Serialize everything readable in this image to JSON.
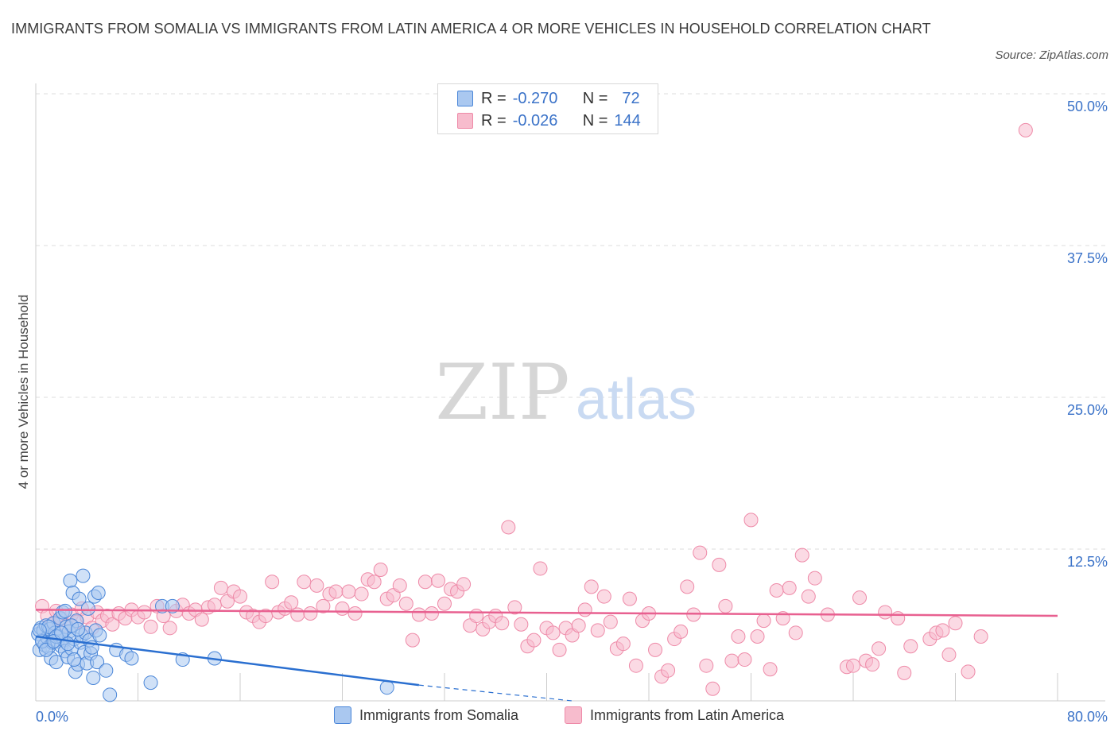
{
  "title": "IMMIGRANTS FROM SOMALIA VS IMMIGRANTS FROM LATIN AMERICA 4 OR MORE VEHICLES IN HOUSEHOLD CORRELATION CHART",
  "source": "Source: ZipAtlas.com",
  "watermark": {
    "zip": "ZIP",
    "atlas": "atlas"
  },
  "legend": {
    "r_label": "R =",
    "n_label": "N =",
    "somalia": {
      "r": "-0.270",
      "n": "72"
    },
    "latin": {
      "r": "-0.026",
      "n": "144"
    }
  },
  "colors": {
    "somalia_fill": "#aac8f0",
    "somalia_stroke": "#4a86d8",
    "somalia_line": "#2a6fd0",
    "latin_fill": "#f7bccd",
    "latin_stroke": "#ee8aa8",
    "latin_line": "#e86090",
    "tick_label": "#3a72c8",
    "grid": "#dddddd"
  },
  "chart_data": {
    "type": "scatter",
    "title": "IMMIGRANTS FROM SOMALIA VS IMMIGRANTS FROM LATIN AMERICA 4 OR MORE VEHICLES IN HOUSEHOLD CORRELATION CHART",
    "xlabel": "",
    "ylabel": "4 or more Vehicles in Household",
    "xlim": [
      0,
      80
    ],
    "ylim": [
      0,
      50
    ],
    "x_tick_labels": [
      "0.0%",
      "80.0%"
    ],
    "y_ticks": [
      12.5,
      25.0,
      37.5,
      50.0
    ],
    "y_tick_labels": [
      "12.5%",
      "25.0%",
      "37.5%",
      "50.0%"
    ],
    "grid": "horizontal dashed",
    "legend_position": "top-center",
    "series": [
      {
        "name": "Immigrants from Somalia",
        "r": -0.27,
        "n": 72,
        "trend": {
          "x0": 0,
          "y0": 5.3,
          "x1": 30,
          "y1": 1.3,
          "dashed_to_x": 42,
          "dashed_to_y": -0.3
        },
        "points": [
          [
            0.2,
            5.5
          ],
          [
            0.3,
            4.2
          ],
          [
            0.4,
            6.0
          ],
          [
            0.5,
            5.0
          ],
          [
            0.6,
            5.8
          ],
          [
            0.7,
            4.6
          ],
          [
            0.8,
            6.2
          ],
          [
            0.9,
            5.2
          ],
          [
            1.0,
            4.4
          ],
          [
            1.1,
            5.9
          ],
          [
            1.2,
            3.5
          ],
          [
            1.3,
            4.8
          ],
          [
            1.4,
            6.4
          ],
          [
            1.5,
            5.6
          ],
          [
            1.6,
            3.2
          ],
          [
            1.7,
            4.9
          ],
          [
            1.8,
            5.3
          ],
          [
            1.9,
            6.8
          ],
          [
            2.0,
            4.5
          ],
          [
            2.1,
            7.3
          ],
          [
            2.2,
            5.0
          ],
          [
            2.3,
            4.1
          ],
          [
            2.4,
            6.1
          ],
          [
            2.5,
            3.6
          ],
          [
            2.6,
            5.7
          ],
          [
            2.7,
            9.9
          ],
          [
            2.8,
            4.3
          ],
          [
            2.9,
            8.9
          ],
          [
            3.0,
            5.1
          ],
          [
            3.1,
            2.4
          ],
          [
            3.2,
            6.6
          ],
          [
            3.3,
            3.0
          ],
          [
            3.4,
            8.4
          ],
          [
            3.5,
            4.8
          ],
          [
            3.6,
            5.4
          ],
          [
            3.7,
            10.3
          ],
          [
            3.8,
            4.0
          ],
          [
            3.9,
            5.6
          ],
          [
            4.0,
            3.1
          ],
          [
            4.1,
            7.6
          ],
          [
            4.2,
            5.0
          ],
          [
            4.3,
            3.9
          ],
          [
            4.4,
            4.4
          ],
          [
            4.5,
            1.9
          ],
          [
            4.6,
            8.6
          ],
          [
            4.7,
            5.8
          ],
          [
            4.8,
            3.2
          ],
          [
            4.9,
            8.9
          ],
          [
            5.0,
            5.4
          ],
          [
            5.5,
            2.5
          ],
          [
            5.8,
            0.5
          ],
          [
            6.3,
            4.2
          ],
          [
            7.1,
            3.8
          ],
          [
            7.5,
            3.5
          ],
          [
            9.0,
            1.5
          ],
          [
            9.9,
            7.8
          ],
          [
            10.7,
            7.8
          ],
          [
            11.5,
            3.4
          ],
          [
            14.0,
            3.5
          ],
          [
            0.5,
            4.9
          ],
          [
            1.0,
            6.1
          ],
          [
            1.6,
            5.3
          ],
          [
            2.3,
            7.4
          ],
          [
            2.8,
            6.2
          ],
          [
            3.3,
            5.9
          ],
          [
            0.8,
            4.2
          ],
          [
            1.4,
            4.9
          ],
          [
            2.0,
            5.6
          ],
          [
            2.5,
            4.7
          ],
          [
            3.0,
            3.4
          ],
          [
            27.5,
            1.1
          ],
          [
            0.3,
            5.8
          ]
        ]
      },
      {
        "name": "Immigrants from Latin America",
        "r": -0.026,
        "n": 144,
        "trend": {
          "x0": 0,
          "y0": 7.5,
          "x1": 80,
          "y1": 7.0
        },
        "points": [
          [
            0.5,
            7.8
          ],
          [
            0.9,
            7.0
          ],
          [
            1.3,
            6.3
          ],
          [
            1.6,
            7.4
          ],
          [
            2.0,
            6.8
          ],
          [
            2.4,
            6.2
          ],
          [
            2.8,
            7.1
          ],
          [
            3.2,
            6.5
          ],
          [
            3.6,
            7.6
          ],
          [
            4.0,
            6.9
          ],
          [
            4.4,
            6.0
          ],
          [
            4.8,
            7.3
          ],
          [
            5.2,
            6.6
          ],
          [
            5.6,
            7.0
          ],
          [
            6.0,
            6.3
          ],
          [
            6.5,
            7.2
          ],
          [
            7.0,
            6.8
          ],
          [
            7.5,
            7.5
          ],
          [
            8.0,
            6.9
          ],
          [
            8.5,
            7.3
          ],
          [
            9.0,
            6.1
          ],
          [
            9.5,
            7.8
          ],
          [
            10.0,
            7.0
          ],
          [
            10.5,
            6.0
          ],
          [
            11.0,
            7.4
          ],
          [
            11.5,
            7.9
          ],
          [
            12.0,
            7.2
          ],
          [
            12.5,
            7.5
          ],
          [
            13.0,
            6.7
          ],
          [
            13.5,
            7.7
          ],
          [
            14.0,
            7.9
          ],
          [
            14.5,
            9.3
          ],
          [
            15.0,
            8.2
          ],
          [
            15.5,
            9.0
          ],
          [
            16.0,
            8.6
          ],
          [
            16.5,
            7.3
          ],
          [
            17.0,
            7.0
          ],
          [
            17.5,
            6.5
          ],
          [
            18.0,
            7.0
          ],
          [
            18.5,
            9.8
          ],
          [
            19.0,
            7.3
          ],
          [
            19.5,
            7.6
          ],
          [
            20.0,
            8.1
          ],
          [
            20.5,
            7.1
          ],
          [
            21.0,
            9.8
          ],
          [
            21.5,
            7.2
          ],
          [
            22.0,
            9.5
          ],
          [
            22.5,
            7.8
          ],
          [
            23.0,
            8.8
          ],
          [
            23.5,
            9.0
          ],
          [
            24.0,
            7.6
          ],
          [
            24.5,
            9.0
          ],
          [
            25.0,
            7.2
          ],
          [
            25.5,
            8.8
          ],
          [
            26.0,
            10.0
          ],
          [
            26.5,
            9.8
          ],
          [
            27.0,
            10.8
          ],
          [
            27.5,
            8.4
          ],
          [
            28.0,
            8.7
          ],
          [
            28.5,
            9.5
          ],
          [
            29.0,
            8.0
          ],
          [
            29.5,
            5.0
          ],
          [
            30.0,
            7.1
          ],
          [
            30.5,
            9.8
          ],
          [
            31.0,
            7.2
          ],
          [
            31.5,
            9.9
          ],
          [
            32.0,
            8.0
          ],
          [
            32.5,
            9.2
          ],
          [
            33.0,
            9.0
          ],
          [
            33.5,
            9.6
          ],
          [
            34.0,
            6.2
          ],
          [
            34.5,
            7.0
          ],
          [
            35.0,
            5.9
          ],
          [
            35.5,
            6.5
          ],
          [
            36.0,
            7.0
          ],
          [
            36.5,
            6.4
          ],
          [
            37.0,
            14.3
          ],
          [
            37.5,
            7.7
          ],
          [
            38.0,
            6.3
          ],
          [
            38.5,
            4.5
          ],
          [
            39.0,
            5.0
          ],
          [
            39.5,
            10.9
          ],
          [
            40.0,
            6.0
          ],
          [
            40.5,
            5.6
          ],
          [
            41.0,
            4.2
          ],
          [
            41.5,
            6.0
          ],
          [
            42.0,
            5.4
          ],
          [
            42.5,
            6.2
          ],
          [
            43.0,
            7.5
          ],
          [
            43.5,
            9.4
          ],
          [
            44.0,
            5.8
          ],
          [
            44.5,
            8.6
          ],
          [
            45.0,
            6.5
          ],
          [
            45.5,
            4.3
          ],
          [
            46.0,
            4.7
          ],
          [
            46.5,
            8.4
          ],
          [
            47.0,
            2.9
          ],
          [
            47.5,
            6.6
          ],
          [
            48.0,
            7.2
          ],
          [
            48.5,
            4.2
          ],
          [
            49.0,
            2.0
          ],
          [
            49.5,
            2.5
          ],
          [
            50.0,
            5.1
          ],
          [
            50.5,
            5.7
          ],
          [
            51.0,
            9.4
          ],
          [
            51.5,
            7.1
          ],
          [
            52.0,
            12.2
          ],
          [
            52.5,
            2.9
          ],
          [
            53.0,
            1.0
          ],
          [
            53.5,
            11.2
          ],
          [
            54.0,
            7.8
          ],
          [
            54.5,
            3.3
          ],
          [
            55.0,
            5.3
          ],
          [
            55.5,
            3.4
          ],
          [
            56.0,
            14.9
          ],
          [
            56.5,
            5.3
          ],
          [
            57.0,
            6.6
          ],
          [
            57.5,
            2.6
          ],
          [
            58.0,
            9.1
          ],
          [
            58.5,
            6.8
          ],
          [
            59.0,
            9.3
          ],
          [
            59.5,
            5.6
          ],
          [
            60.0,
            12.0
          ],
          [
            60.5,
            8.6
          ],
          [
            61.0,
            10.1
          ],
          [
            62.0,
            7.1
          ],
          [
            63.5,
            2.8
          ],
          [
            64.0,
            2.9
          ],
          [
            64.5,
            8.5
          ],
          [
            65.0,
            3.3
          ],
          [
            65.5,
            3.0
          ],
          [
            66.0,
            4.3
          ],
          [
            66.5,
            7.3
          ],
          [
            67.5,
            6.8
          ],
          [
            68.0,
            2.3
          ],
          [
            68.5,
            4.5
          ],
          [
            70.0,
            5.1
          ],
          [
            70.5,
            5.6
          ],
          [
            71.0,
            5.8
          ],
          [
            71.5,
            3.8
          ],
          [
            72.0,
            6.4
          ],
          [
            73.0,
            2.4
          ],
          [
            74.0,
            5.3
          ],
          [
            77.5,
            47.0
          ]
        ]
      }
    ]
  },
  "bottom_legend": {
    "somalia": "Immigrants from Somalia",
    "latin": "Immigrants from Latin America"
  }
}
